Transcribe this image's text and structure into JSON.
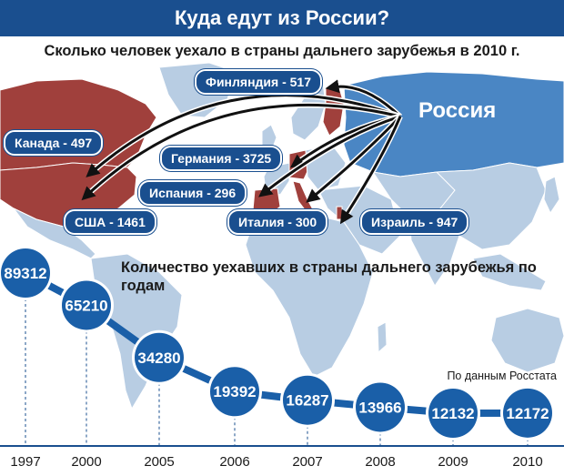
{
  "header": {
    "title": "Куда едут из России?",
    "subtitle": "Сколько человек уехало в страны дальнего зарубежья в 2010 г."
  },
  "map": {
    "origin_label": "Россия",
    "destinations": [
      {
        "label": "Финляндия - 517"
      },
      {
        "label": "Канада - 497"
      },
      {
        "label": "Германия - 3725"
      },
      {
        "label": "Испания - 296"
      },
      {
        "label": "США - 1461"
      },
      {
        "label": "Италия - 300"
      },
      {
        "label": "Израиль - 947"
      }
    ]
  },
  "yearly_title": "Количество уехавших в страны дальнего зарубежья по годам",
  "source": "По данным Росстата",
  "colors": {
    "header": "#1a4f8f",
    "bubble": "#1a5fa8",
    "destination_country": "#a0403c",
    "ocean": "#ffffff",
    "land": "#b8cde3",
    "russia": "#4a86c4"
  },
  "chart_data": [
    {
      "type": "bar",
      "title": "Сколько человек уехало в страны дальнего зарубежья в 2010 г.",
      "categories": [
        "Финляндия",
        "Канада",
        "Германия",
        "Испания",
        "США",
        "Италия",
        "Израиль"
      ],
      "values": [
        517,
        497,
        3725,
        296,
        1461,
        300,
        947
      ]
    },
    {
      "type": "line",
      "title": "Количество уехавших в страны дальнего зарубежья по годам",
      "x": [
        "1997",
        "2000",
        "2005",
        "2006",
        "2007",
        "2008",
        "2009",
        "2010"
      ],
      "series": [
        {
          "values": [
            89312,
            65210,
            34280,
            19392,
            16287,
            13966,
            12132,
            12172
          ]
        }
      ]
    }
  ]
}
